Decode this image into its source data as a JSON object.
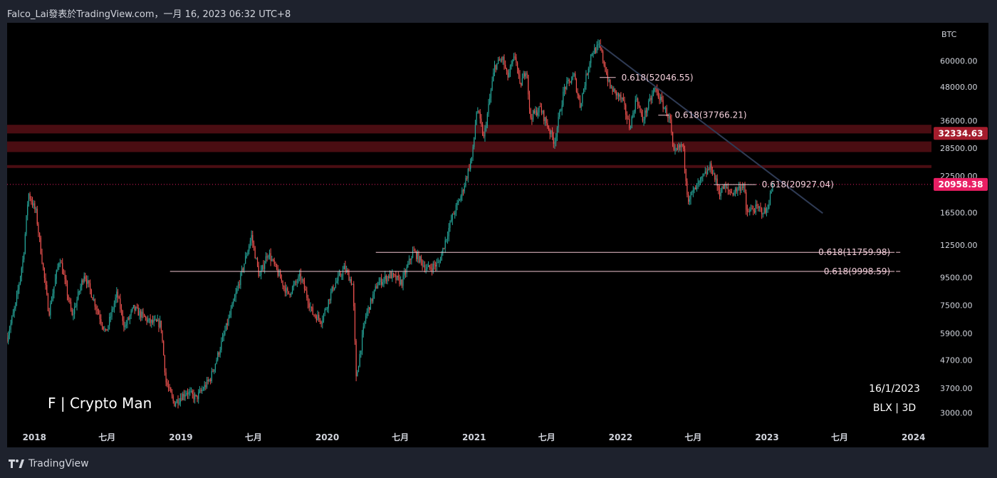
{
  "header": {
    "text": "Falco_Lai發表於TradingView.com，一月 16, 2023 06:32 UTC+8"
  },
  "footer": {
    "brand": "TradingView"
  },
  "chart_data": {
    "type": "candlestick",
    "symbol": "BLX",
    "interval": "3D",
    "unit_label": "BTC",
    "date_stamp": "16/1/2023",
    "info": "BLX | 3D",
    "watermark": "F | Crypto Man",
    "y_scale": "log",
    "ylim": [
      2700,
      78000
    ],
    "y_ticks": [
      {
        "value": 60000,
        "label": "60000.00"
      },
      {
        "value": 48000,
        "label": "48000.00"
      },
      {
        "value": 36000,
        "label": "36000.00"
      },
      {
        "value": 28500,
        "label": "28500.00"
      },
      {
        "value": 22500,
        "label": "22500.00"
      },
      {
        "value": 16500,
        "label": "16500.00"
      },
      {
        "value": 12500,
        "label": "12500.00"
      },
      {
        "value": 9500,
        "label": "9500.00"
      },
      {
        "value": 7500,
        "label": "7500.00"
      },
      {
        "value": 5900,
        "label": "5900.00"
      },
      {
        "value": 4700,
        "label": "4700.00"
      },
      {
        "value": 3700,
        "label": "3700.00"
      },
      {
        "value": 3000,
        "label": "3000.00"
      }
    ],
    "xlim": [
      "2017-10-25",
      "2024-02-15"
    ],
    "x_ticks": [
      {
        "date": "2018-01-01",
        "label": "2018"
      },
      {
        "date": "2018-07-01",
        "label": "七月"
      },
      {
        "date": "2019-01-01",
        "label": "2019"
      },
      {
        "date": "2019-07-01",
        "label": "七月"
      },
      {
        "date": "2020-01-01",
        "label": "2020"
      },
      {
        "date": "2020-07-01",
        "label": "七月"
      },
      {
        "date": "2021-01-01",
        "label": "2021"
      },
      {
        "date": "2021-07-01",
        "label": "七月"
      },
      {
        "date": "2022-01-01",
        "label": "2022"
      },
      {
        "date": "2022-07-01",
        "label": "七月"
      },
      {
        "date": "2023-01-01",
        "label": "2023"
      },
      {
        "date": "2023-07-01",
        "label": "七月"
      },
      {
        "date": "2024-01-01",
        "label": "2024"
      }
    ],
    "price_path": [
      [
        "2017-10-25",
        5700
      ],
      [
        "2017-11-15",
        7500
      ],
      [
        "2017-12-05",
        11500
      ],
      [
        "2017-12-17",
        19500
      ],
      [
        "2018-01-05",
        16500
      ],
      [
        "2018-02-06",
        7000
      ],
      [
        "2018-03-05",
        11300
      ],
      [
        "2018-04-05",
        6800
      ],
      [
        "2018-05-05",
        9800
      ],
      [
        "2018-06-28",
        5900
      ],
      [
        "2018-07-26",
        8300
      ],
      [
        "2018-08-14",
        6200
      ],
      [
        "2018-09-05",
        7300
      ],
      [
        "2018-10-15",
        6500
      ],
      [
        "2018-11-12",
        6400
      ],
      [
        "2018-11-25",
        3900
      ],
      [
        "2018-12-15",
        3250
      ],
      [
        "2019-01-15",
        3600
      ],
      [
        "2019-02-08",
        3400
      ],
      [
        "2019-03-15",
        4000
      ],
      [
        "2019-04-05",
        5000
      ],
      [
        "2019-05-15",
        7900
      ],
      [
        "2019-06-26",
        13500
      ],
      [
        "2019-07-16",
        9500
      ],
      [
        "2019-08-06",
        11800
      ],
      [
        "2019-09-25",
        8200
      ],
      [
        "2019-10-26",
        9600
      ],
      [
        "2019-11-25",
        7000
      ],
      [
        "2019-12-18",
        6600
      ],
      [
        "2020-01-15",
        8700
      ],
      [
        "2020-02-13",
        10300
      ],
      [
        "2020-03-05",
        8900
      ],
      [
        "2020-03-13",
        4000
      ],
      [
        "2020-04-05",
        6800
      ],
      [
        "2020-05-05",
        9000
      ],
      [
        "2020-06-05",
        9700
      ],
      [
        "2020-07-05",
        9100
      ],
      [
        "2020-08-02",
        11900
      ],
      [
        "2020-09-05",
        10200
      ],
      [
        "2020-10-05",
        10700
      ],
      [
        "2020-11-05",
        15500
      ],
      [
        "2020-12-01",
        19300
      ],
      [
        "2020-12-28",
        27000
      ],
      [
        "2021-01-08",
        40500
      ],
      [
        "2021-01-25",
        31000
      ],
      [
        "2021-02-21",
        57000
      ],
      [
        "2021-03-13",
        61500
      ],
      [
        "2021-03-25",
        52000
      ],
      [
        "2021-04-14",
        63000
      ],
      [
        "2021-04-25",
        48000
      ],
      [
        "2021-05-12",
        57000
      ],
      [
        "2021-05-20",
        37000
      ],
      [
        "2021-06-15",
        40000
      ],
      [
        "2021-07-20",
        30000
      ],
      [
        "2021-08-14",
        47500
      ],
      [
        "2021-09-07",
        52700
      ],
      [
        "2021-09-22",
        41000
      ],
      [
        "2021-10-20",
        64000
      ],
      [
        "2021-11-10",
        68000
      ],
      [
        "2021-12-05",
        48000
      ],
      [
        "2022-01-05",
        43000
      ],
      [
        "2022-01-24",
        34000
      ],
      [
        "2022-02-10",
        44000
      ],
      [
        "2022-02-24",
        36000
      ],
      [
        "2022-03-28",
        47500
      ],
      [
        "2022-05-05",
        36000
      ],
      [
        "2022-05-12",
        27000
      ],
      [
        "2022-06-05",
        29500
      ],
      [
        "2022-06-18",
        18500
      ],
      [
        "2022-07-05",
        20000
      ],
      [
        "2022-08-14",
        24500
      ],
      [
        "2022-09-05",
        19500
      ],
      [
        "2022-09-15",
        20500
      ],
      [
        "2022-10-05",
        19500
      ],
      [
        "2022-11-05",
        21000
      ],
      [
        "2022-11-10",
        16500
      ],
      [
        "2022-12-05",
        17100
      ],
      [
        "2022-12-30",
        16550
      ],
      [
        "2023-01-16",
        20958
      ]
    ],
    "zones": [
      {
        "low": 32334.63,
        "high": 34800
      },
      {
        "low": 27600,
        "high": 30200
      },
      {
        "low": 24100,
        "high": 24700
      }
    ],
    "price_line": {
      "value": 20958.38
    },
    "trendline": {
      "from": [
        "2021-11-10",
        69000
      ],
      "to": [
        "2023-05-20",
        16400
      ]
    },
    "fib_levels": [
      {
        "label": "0.618(52046.55)",
        "value": 52046.55,
        "from": "2021-11-10",
        "to": "2021-12-20"
      },
      {
        "label": "0.618(37766.21)",
        "value": 37766.21,
        "from": "2022-04-05",
        "to": "2022-05-02"
      },
      {
        "label": "0.618(20927.04)",
        "value": 20927.04,
        "from": "2022-08-22",
        "to": "2022-12-05"
      },
      {
        "label": "0.618(11759.98)",
        "value": 11759.98,
        "from": "2020-05-01",
        "to": "2023-11-15"
      },
      {
        "label": "0.618(9998.59)",
        "value": 9998.59,
        "from": "2018-12-05",
        "to": "2023-11-15"
      }
    ],
    "price_tags": [
      {
        "label": "32334.63",
        "value": 32334.63,
        "color": "#a51d2d"
      },
      {
        "label": "20958.38",
        "value": 20958.38,
        "color": "#e91e63"
      }
    ],
    "colors": {
      "up": "#26a69a",
      "down": "#ef5350",
      "zone": "#4a0d12",
      "fib": "#f0c4d0",
      "trend": "#2f3b55"
    }
  }
}
